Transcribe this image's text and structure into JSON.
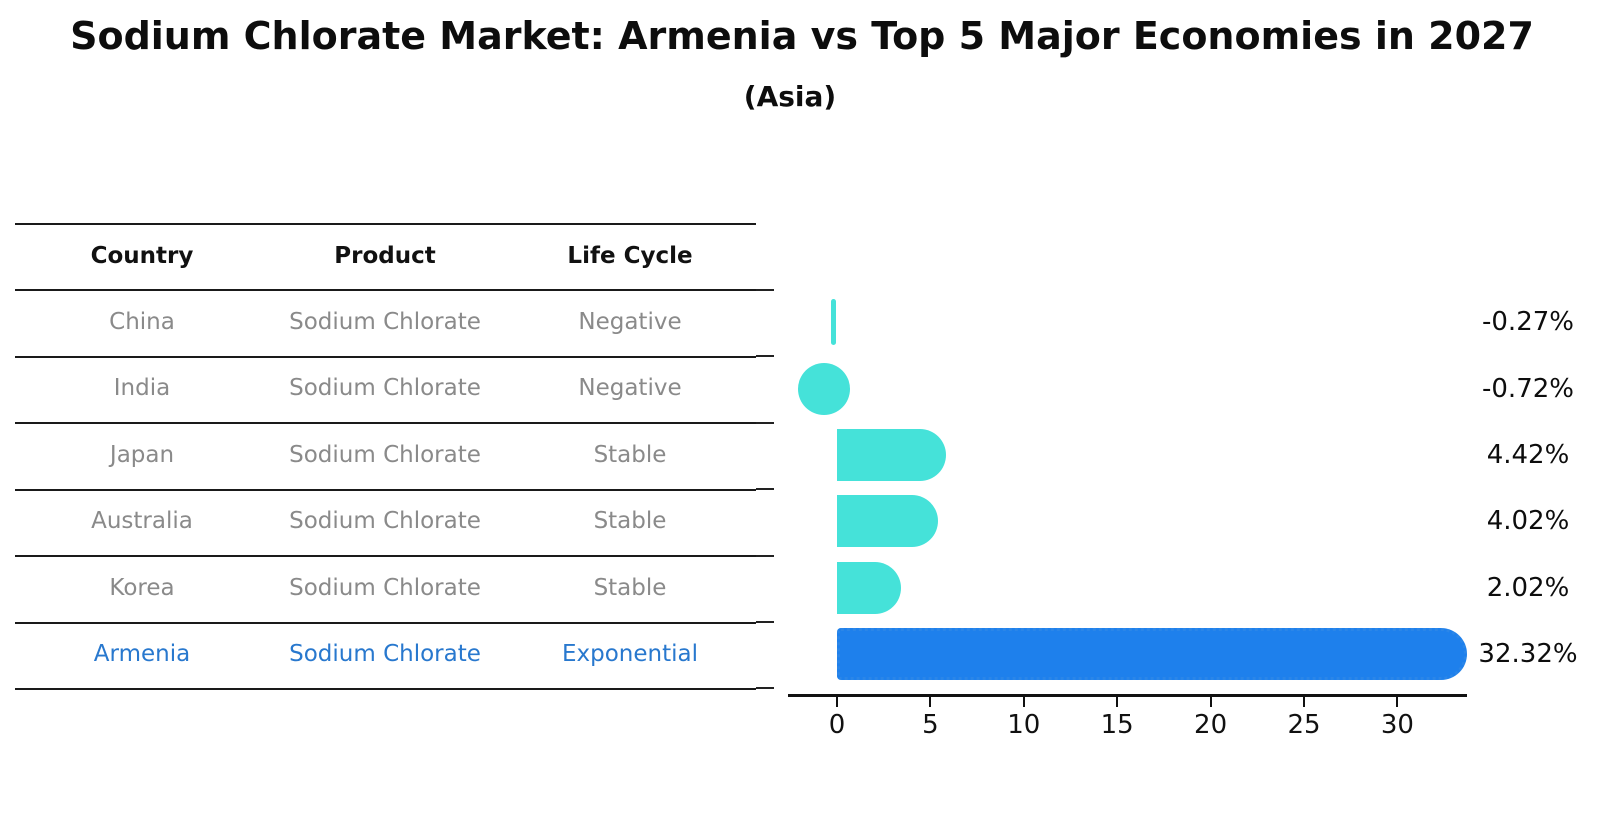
{
  "title": "Sodium Chlorate Market: Armenia vs Top 5 Major Economies in 2027",
  "subtitle": "(Asia)",
  "table": {
    "headers": [
      "Country",
      "Product",
      "Life Cycle"
    ],
    "rows": [
      {
        "country": "China",
        "product": "Sodium Chlorate",
        "life_cycle": "Negative"
      },
      {
        "country": "India",
        "product": "Sodium Chlorate",
        "life_cycle": "Negative"
      },
      {
        "country": "Japan",
        "product": "Sodium Chlorate",
        "life_cycle": "Stable"
      },
      {
        "country": "Australia",
        "product": "Sodium Chlorate",
        "life_cycle": "Stable"
      },
      {
        "country": "Korea",
        "product": "Sodium Chlorate",
        "life_cycle": "Stable"
      },
      {
        "country": "Armenia",
        "product": "Sodium Chlorate",
        "life_cycle": "Exponential"
      }
    ]
  },
  "chart_data": {
    "type": "bar",
    "orientation": "horizontal",
    "title": "Sodium Chlorate Market: Armenia vs Top 5 Major Economies in 2027 (Asia)",
    "categories": [
      "China",
      "India",
      "Japan",
      "Australia",
      "Korea",
      "Armenia"
    ],
    "values": [
      -0.27,
      -0.72,
      4.42,
      4.02,
      2.02,
      32.32
    ],
    "value_labels": [
      "-0.27%",
      "-0.72%",
      "4.42%",
      "4.02%",
      "2.02%",
      "32.32%"
    ],
    "unit": "percent growth",
    "xticks": [
      0,
      5,
      10,
      15,
      20,
      25,
      30
    ],
    "xlim": [
      -2.6,
      33.7
    ],
    "grid": false,
    "legend": "none",
    "highlight_index": 5,
    "colors": {
      "bar_default": "#45e2d9",
      "bar_highlight": "#1e80ec",
      "bar_highlight_border": "#2b86e8",
      "highlight_text": "#2878ce",
      "row_text": "#8a8a8a",
      "axis": "#111111"
    }
  }
}
